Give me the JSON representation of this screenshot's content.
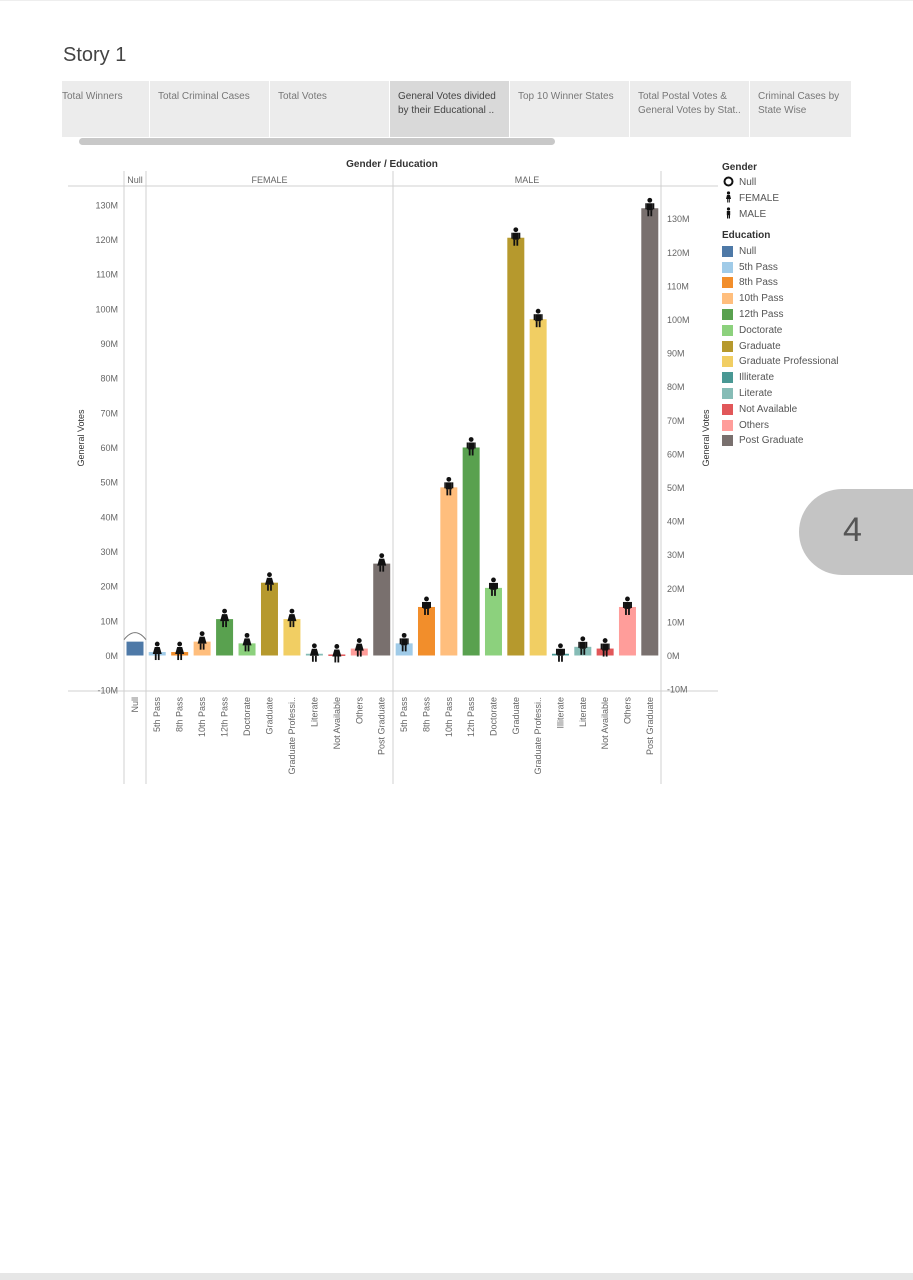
{
  "story": {
    "title": "Story 1"
  },
  "tabs": [
    {
      "label": "Total Winners"
    },
    {
      "label": "Total Criminal Cases"
    },
    {
      "label": "Total Votes"
    },
    {
      "label": "General Votes divided by their Educational ..",
      "active": true
    },
    {
      "label": "Top 10 Winner States"
    },
    {
      "label": "Total Postal Votes & General Votes by Stat.."
    },
    {
      "label": "Criminal Cases by State Wise"
    }
  ],
  "page_number": "4",
  "legend": {
    "gender_title": "Gender",
    "gender_items": [
      {
        "label": "Null",
        "icon": "circle-icon"
      },
      {
        "label": "FEMALE",
        "icon": "female-figure-icon"
      },
      {
        "label": "MALE",
        "icon": "male-figure-icon"
      }
    ],
    "education_title": "Education",
    "education_items": [
      {
        "label": "Null",
        "color": "#4e79a7"
      },
      {
        "label": "5th Pass",
        "color": "#a0cbe8"
      },
      {
        "label": "8th Pass",
        "color": "#f28e2b"
      },
      {
        "label": "10th Pass",
        "color": "#ffbe7d"
      },
      {
        "label": "12th Pass",
        "color": "#59a14f"
      },
      {
        "label": "Doctorate",
        "color": "#8cd17d"
      },
      {
        "label": "Graduate",
        "color": "#b6992d"
      },
      {
        "label": "Graduate Professional",
        "color": "#f1ce63"
      },
      {
        "label": "Illiterate",
        "color": "#499894"
      },
      {
        "label": "Literate",
        "color": "#86bcb6"
      },
      {
        "label": "Not Available",
        "color": "#e15759"
      },
      {
        "label": "Others",
        "color": "#ff9d9a"
      },
      {
        "label": "Post Graduate",
        "color": "#79706e"
      }
    ]
  },
  "chart_data": {
    "type": "bar",
    "title": "Gender / Education",
    "ylabel": "General Votes",
    "ylabel_right": "General Votes",
    "ylim": [
      -10,
      130
    ],
    "y_unit": "M",
    "yticks": [
      "130M",
      "120M",
      "110M",
      "100M",
      "90M",
      "80M",
      "70M",
      "60M",
      "50M",
      "40M",
      "30M",
      "20M",
      "10M",
      "0M",
      "-10M"
    ],
    "panes": [
      {
        "name": "Null",
        "categories": [
          "Null"
        ],
        "values": [
          4
        ],
        "education": [
          "Null"
        ]
      },
      {
        "name": "FEMALE",
        "categories": [
          "5th Pass",
          "8th Pass",
          "10th Pass",
          "12th Pass",
          "Doctorate",
          "Graduate",
          "Graduate Professi..",
          "Literate",
          "Not Available",
          "Others",
          "Post Graduate"
        ],
        "education": [
          "5th Pass",
          "8th Pass",
          "10th Pass",
          "12th Pass",
          "Doctorate",
          "Graduate",
          "Graduate Professional",
          "Literate",
          "Not Available",
          "Others",
          "Post Graduate"
        ],
        "values": [
          1,
          1,
          4,
          10.5,
          3.5,
          21,
          10.5,
          0.5,
          0.3,
          2,
          26.5
        ]
      },
      {
        "name": "MALE",
        "categories": [
          "5th Pass",
          "8th Pass",
          "10th Pass",
          "12th Pass",
          "Doctorate",
          "Graduate",
          "Graduate Professi..",
          "Illiterate",
          "Literate",
          "Not Available",
          "Others",
          "Post Graduate"
        ],
        "education": [
          "5th Pass",
          "8th Pass",
          "10th Pass",
          "12th Pass",
          "Doctorate",
          "Graduate",
          "Graduate Professional",
          "Illiterate",
          "Literate",
          "Not Available",
          "Others",
          "Post Graduate"
        ],
        "values": [
          3.5,
          14,
          48.5,
          60,
          19.5,
          120.5,
          97,
          0.5,
          2.5,
          2,
          14,
          129
        ]
      }
    ]
  }
}
